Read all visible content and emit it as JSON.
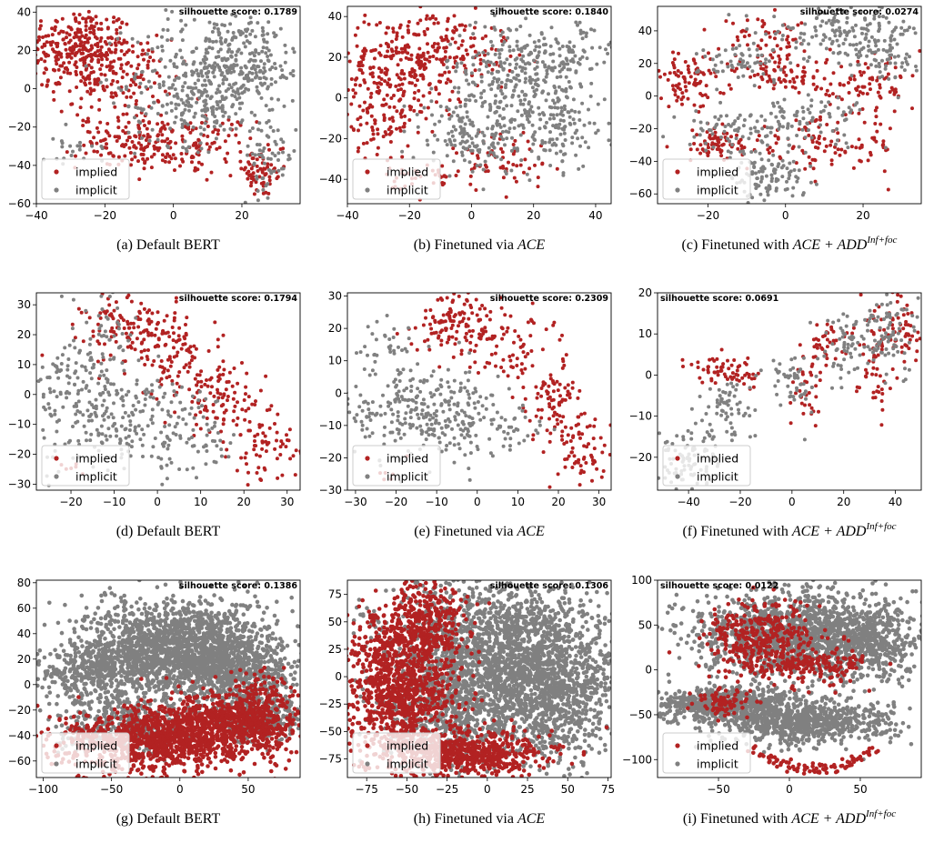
{
  "colors": {
    "implied": "#b22222",
    "implicit": "#808080"
  },
  "legend": {
    "implied": "implied",
    "implicit": "implicit",
    "placement": "lower-left"
  },
  "score_label": "silhouette score: ",
  "chart_data": [
    {
      "type": "scatter",
      "caption": "(a) Default BERT",
      "caption_italic": "",
      "score": "0.1789",
      "score_placement": "top-right",
      "xlim": [
        -40,
        37
      ],
      "ylim": [
        -60,
        43
      ],
      "xticks": [
        -40,
        -20,
        0,
        20
      ],
      "yticks": [
        -60,
        -40,
        -20,
        0,
        20,
        40
      ],
      "series": [
        {
          "name": "implied",
          "clusters": [
            [
              -28,
              22,
              8,
              10,
              280
            ],
            [
              -18,
              6,
              9,
              10,
              160
            ],
            [
              -10,
              -28,
              9,
              7,
              150
            ],
            [
              8,
              -30,
              8,
              8,
              90
            ],
            [
              25,
              -45,
              4,
              6,
              60
            ]
          ]
        },
        {
          "name": "implicit",
          "clusters": [
            [
              12,
              8,
              12,
              16,
              300
            ],
            [
              22,
              18,
              8,
              10,
              120
            ],
            [
              5,
              -10,
              8,
              10,
              120
            ],
            [
              28,
              -35,
              4,
              10,
              60
            ],
            [
              -30,
              -30,
              4,
              6,
              20
            ]
          ]
        }
      ]
    },
    {
      "type": "scatter",
      "caption": "(b) Finetuned via ",
      "caption_italic": "ACE",
      "score": "0.1840",
      "score_placement": "top-right",
      "xlim": [
        -40,
        45
      ],
      "ylim": [
        -52,
        45
      ],
      "xticks": [
        -40,
        -20,
        0,
        20,
        40
      ],
      "yticks": [
        -40,
        -20,
        0,
        20,
        40
      ],
      "series": [
        {
          "name": "implied",
          "clusters": [
            [
              -22,
              15,
              10,
              14,
              260
            ],
            [
              -30,
              -10,
              6,
              10,
              80
            ],
            [
              -5,
              25,
              10,
              8,
              100
            ],
            [
              10,
              -30,
              8,
              8,
              60
            ],
            [
              -15,
              -40,
              6,
              5,
              40
            ]
          ]
        },
        {
          "name": "implicit",
          "clusters": [
            [
              15,
              10,
              12,
              14,
              300
            ],
            [
              25,
              -15,
              10,
              10,
              140
            ],
            [
              0,
              -20,
              10,
              10,
              120
            ],
            [
              30,
              20,
              8,
              8,
              80
            ]
          ]
        }
      ]
    },
    {
      "type": "scatter",
      "caption": "(c) Finetuned with ",
      "caption_italic": "ACE + ADD",
      "caption_sup": "Inf+foc",
      "score": "0.0274",
      "score_placement": "top-right",
      "xlim": [
        -33,
        35
      ],
      "ylim": [
        -66,
        55
      ],
      "xticks": [
        -20,
        0,
        20
      ],
      "yticks": [
        -60,
        -40,
        -20,
        0,
        20,
        40
      ],
      "series": [
        {
          "name": "implied",
          "clusters": [
            [
              -25,
              10,
              5,
              8,
              90
            ],
            [
              -18,
              -30,
              6,
              5,
              70
            ],
            [
              0,
              15,
              6,
              6,
              70
            ],
            [
              20,
              5,
              8,
              8,
              90
            ],
            [
              10,
              -30,
              10,
              8,
              100
            ],
            [
              -5,
              35,
              6,
              6,
              50
            ]
          ]
        },
        {
          "name": "implicit",
          "clusters": [
            [
              15,
              40,
              10,
              8,
              150
            ],
            [
              -5,
              -50,
              5,
              8,
              110
            ],
            [
              -15,
              -20,
              6,
              6,
              60
            ],
            [
              5,
              -15,
              8,
              8,
              90
            ],
            [
              25,
              25,
              6,
              8,
              70
            ],
            [
              -10,
              20,
              6,
              6,
              60
            ]
          ]
        }
      ]
    },
    {
      "type": "scatter",
      "caption": "(d) Default BERT",
      "caption_italic": "",
      "score": "0.1794",
      "score_placement": "top-right",
      "xlim": [
        -28,
        33
      ],
      "ylim": [
        -32,
        34
      ],
      "xticks": [
        -20,
        -10,
        0,
        10,
        20,
        30
      ],
      "yticks": [
        -30,
        -20,
        -10,
        0,
        10,
        20,
        30
      ],
      "series": [
        {
          "name": "implied",
          "clusters": [
            [
              -5,
              22,
              6,
              6,
              140
            ],
            [
              5,
              10,
              5,
              6,
              80
            ],
            [
              15,
              -2,
              5,
              6,
              90
            ],
            [
              25,
              -18,
              4,
              6,
              70
            ],
            [
              -20,
              -25,
              2,
              2,
              6
            ]
          ]
        },
        {
          "name": "implicit",
          "clusters": [
            [
              -15,
              -5,
              8,
              10,
              180
            ],
            [
              -2,
              -10,
              8,
              8,
              110
            ],
            [
              -12,
              20,
              4,
              8,
              50
            ],
            [
              10,
              -15,
              5,
              5,
              40
            ],
            [
              -22,
              8,
              3,
              5,
              30
            ]
          ]
        }
      ]
    },
    {
      "type": "scatter",
      "caption": "(e) Finetuned via ",
      "caption_italic": "ACE",
      "score": "0.2309",
      "score_placement": "top-right",
      "xlim": [
        -32,
        33
      ],
      "ylim": [
        -30,
        31
      ],
      "xticks": [
        -30,
        -20,
        -10,
        0,
        10,
        20,
        30
      ],
      "yticks": [
        -30,
        -20,
        -10,
        0,
        10,
        20,
        30
      ],
      "series": [
        {
          "name": "implied",
          "clusters": [
            [
              -5,
              22,
              5,
              5,
              120
            ],
            [
              8,
              15,
              5,
              6,
              70
            ],
            [
              18,
              -2,
              4,
              6,
              80
            ],
            [
              26,
              -18,
              4,
              6,
              70
            ],
            [
              -20,
              -25,
              2,
              2,
              6
            ]
          ]
        },
        {
          "name": "implicit",
          "clusters": [
            [
              -18,
              -5,
              8,
              8,
              200
            ],
            [
              -5,
              -8,
              6,
              8,
              110
            ],
            [
              8,
              -10,
              5,
              5,
              40
            ],
            [
              -22,
              15,
              4,
              4,
              30
            ]
          ]
        }
      ]
    },
    {
      "type": "scatter",
      "caption": "(f) Finetuned with ",
      "caption_italic": "ACE + ADD",
      "caption_sup": "Inf+foc",
      "score": "0.0691",
      "score_placement": "top-left",
      "xlim": [
        -52,
        50
      ],
      "ylim": [
        -28,
        20
      ],
      "xticks": [
        -40,
        -20,
        0,
        20,
        40
      ],
      "yticks": [
        -20,
        -10,
        0,
        10,
        20
      ],
      "series": [
        {
          "name": "implied",
          "clusters": [
            [
              -30,
              2,
              5,
              2,
              35
            ],
            [
              -20,
              0,
              3,
              2,
              30
            ],
            [
              5,
              -5,
              3,
              4,
              30
            ],
            [
              12,
              8,
              4,
              3,
              40
            ],
            [
              32,
              5,
              4,
              6,
              60
            ],
            [
              42,
              12,
              4,
              4,
              50
            ]
          ]
        },
        {
          "name": "implicit",
          "clusters": [
            [
              -40,
              -20,
              7,
              4,
              100
            ],
            [
              -25,
              -8,
              5,
              4,
              60
            ],
            [
              0,
              -2,
              5,
              4,
              50
            ],
            [
              22,
              8,
              6,
              4,
              70
            ],
            [
              38,
              10,
              5,
              5,
              70
            ]
          ]
        }
      ]
    },
    {
      "type": "scatter",
      "caption": "(g) Default BERT",
      "caption_italic": "",
      "score": "0.1386",
      "score_placement": "top-right",
      "xlim": [
        -105,
        88
      ],
      "ylim": [
        -73,
        82
      ],
      "xticks": [
        -100,
        -50,
        0,
        50
      ],
      "yticks": [
        -60,
        -40,
        -20,
        0,
        20,
        40,
        60,
        80
      ],
      "series": [
        {
          "name": "implicit",
          "clusters": [
            [
              0,
              30,
              35,
              18,
              1600
            ],
            [
              40,
              10,
              25,
              15,
              600
            ],
            [
              -60,
              10,
              25,
              10,
              400
            ],
            [
              -40,
              -30,
              25,
              12,
              400
            ],
            [
              60,
              -25,
              15,
              10,
              300
            ]
          ]
        },
        {
          "name": "implied",
          "clusters": [
            [
              -20,
              -45,
              35,
              12,
              900
            ],
            [
              30,
              -30,
              30,
              12,
              700
            ],
            [
              60,
              -20,
              12,
              15,
              200
            ]
          ]
        }
      ]
    },
    {
      "type": "scatter",
      "caption": "(h) Finetuned via ",
      "caption_italic": "ACE",
      "score": "0.1306",
      "score_placement": "top-right",
      "xlim": [
        -87,
        77
      ],
      "ylim": [
        -92,
        88
      ],
      "xticks": [
        -75,
        -50,
        -25,
        0,
        25,
        50,
        75
      ],
      "yticks": [
        -75,
        -50,
        -25,
        0,
        25,
        50,
        75
      ],
      "series": [
        {
          "name": "implicit",
          "clusters": [
            [
              10,
              20,
              35,
              35,
              2000
            ],
            [
              40,
              -20,
              20,
              30,
              700
            ],
            [
              -20,
              -30,
              20,
              25,
              500
            ]
          ]
        },
        {
          "name": "implied",
          "clusters": [
            [
              -55,
              -10,
              18,
              35,
              1100
            ],
            [
              -10,
              -70,
              25,
              10,
              600
            ],
            [
              -40,
              50,
              12,
              20,
              300
            ]
          ]
        }
      ]
    },
    {
      "type": "scatter",
      "caption": "(i) Finetuned with ",
      "caption_italic": "ACE + ADD",
      "caption_sup": "Inf+foc",
      "score": "0.0122",
      "score_placement": "top-left",
      "xlim": [
        -93,
        93
      ],
      "ylim": [
        -120,
        100
      ],
      "xticks": [
        -50,
        0,
        50
      ],
      "yticks": [
        -100,
        -50,
        0,
        50,
        100
      ],
      "series": [
        {
          "name": "implicit",
          "clusters": [
            [
              5,
              40,
              38,
              25,
              1400
            ],
            [
              -40,
              -40,
              28,
              10,
              700
            ],
            [
              10,
              -60,
              30,
              12,
              700
            ],
            [
              60,
              30,
              15,
              20,
              300
            ]
          ]
        },
        {
          "name": "implied",
          "clusters": [
            [
              -20,
              35,
              20,
              22,
              350
            ],
            [
              20,
              5,
              18,
              10,
              150
            ],
            [
              -45,
              -35,
              10,
              8,
              80
            ]
          ]
        },
        {
          "name": "implied",
          "arc": {
            "x": [
              -30,
              65
            ],
            "ymid": -110,
            "sag": 25,
            "count": 90
          }
        }
      ]
    }
  ]
}
